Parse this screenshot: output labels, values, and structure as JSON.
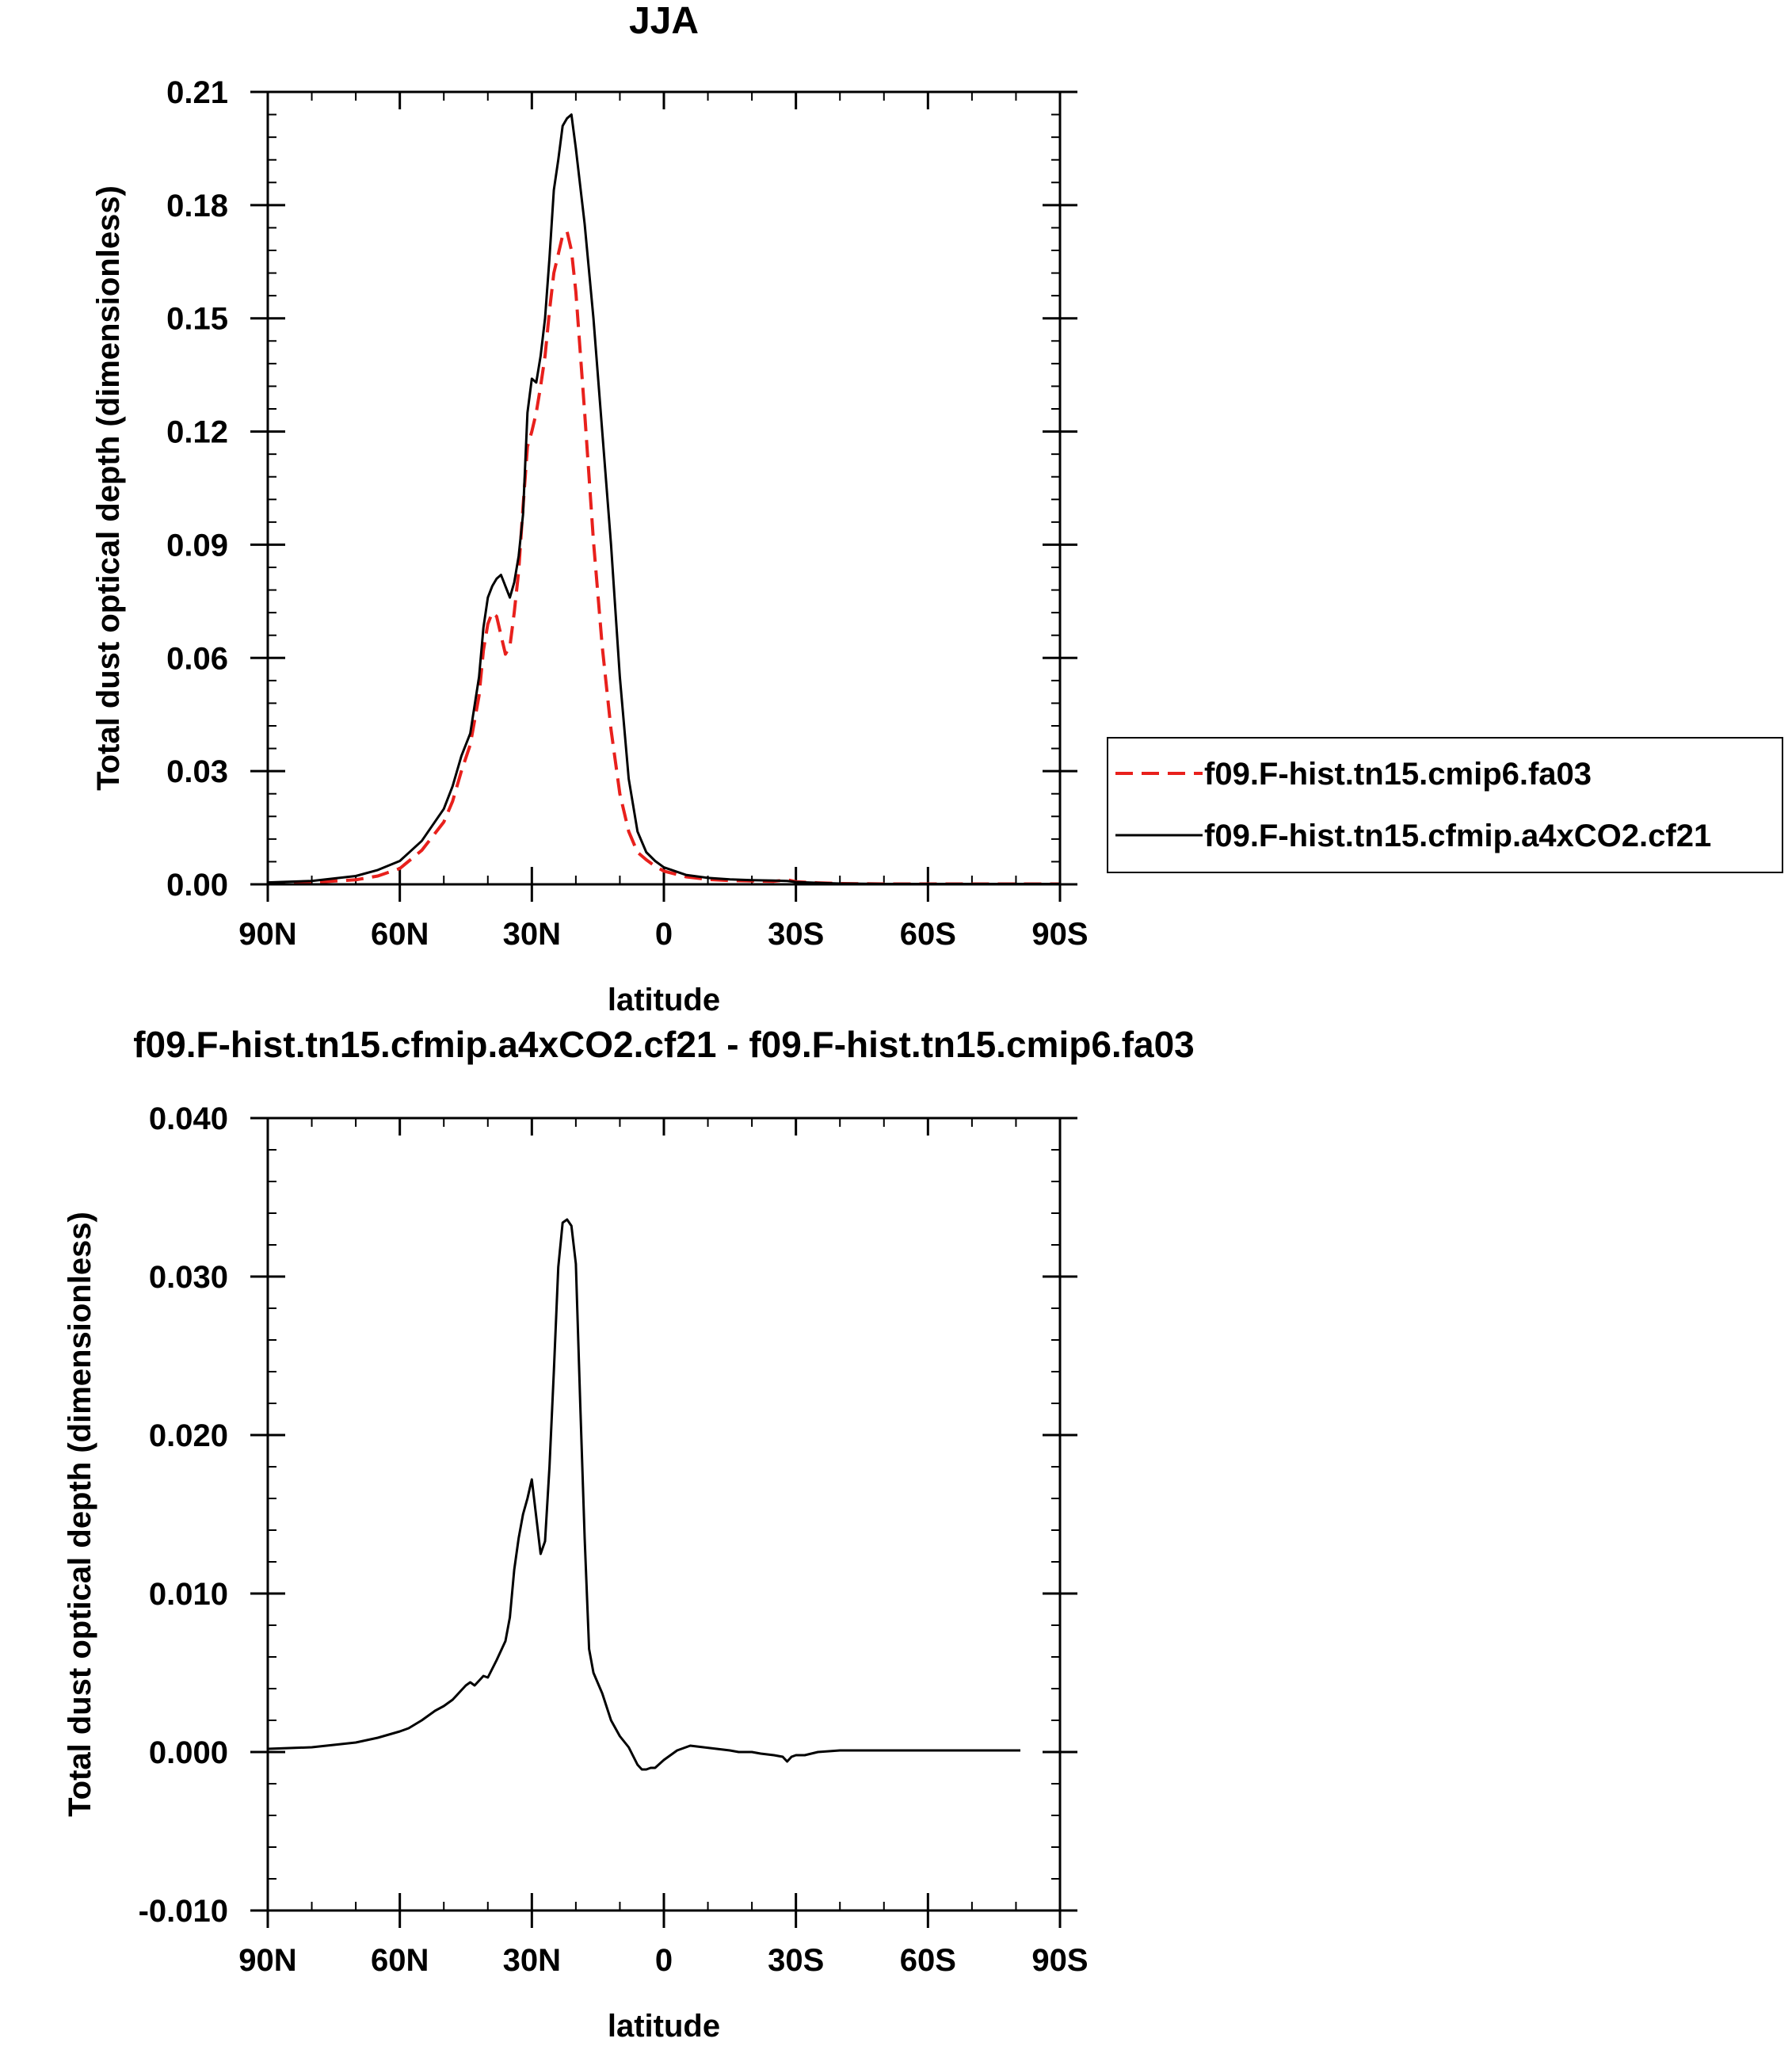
{
  "chart_data": [
    {
      "type": "line",
      "title": "JJA",
      "xlabel": "latitude",
      "ylabel": "Total dust optical depth (dimensionless)",
      "xlim": [
        90,
        -90
      ],
      "ylim": [
        0,
        0.21
      ],
      "x_ticks": [
        90,
        60,
        30,
        0,
        -30,
        -60,
        -90
      ],
      "x_tick_labels": [
        "90N",
        "60N",
        "30N",
        "0",
        "30S",
        "60S",
        "90S"
      ],
      "y_ticks": [
        0,
        0.03,
        0.06,
        0.09,
        0.12,
        0.15,
        0.18,
        0.21
      ],
      "y_tick_labels": [
        "0.00",
        "0.03",
        "0.06",
        "0.09",
        "0.12",
        "0.15",
        "0.18",
        "0.21"
      ],
      "legend_placement": "right",
      "series": [
        {
          "name": "f09.F-hist.tn15.cmip6.fa03",
          "color": "#e8201c",
          "dash": "dashed",
          "x": [
            90,
            80,
            70,
            65,
            60,
            55,
            50,
            48,
            46,
            44,
            42,
            41,
            40,
            39,
            38,
            37,
            36,
            35,
            34,
            33,
            32,
            31,
            30,
            29,
            28,
            27,
            26,
            25,
            24,
            23,
            22,
            21,
            20,
            18,
            16,
            14,
            12,
            10,
            8,
            6,
            4,
            2,
            0,
            -5,
            -10,
            -15,
            -20,
            -25,
            -28,
            -30,
            -35,
            -40,
            -50,
            -60,
            -70,
            -80,
            -90
          ],
          "y": [
            0.0003,
            0.0005,
            0.0012,
            0.0022,
            0.0042,
            0.009,
            0.0165,
            0.022,
            0.03,
            0.037,
            0.05,
            0.062,
            0.069,
            0.072,
            0.071,
            0.066,
            0.061,
            0.063,
            0.072,
            0.083,
            0.1,
            0.116,
            0.12,
            0.125,
            0.132,
            0.14,
            0.152,
            0.162,
            0.167,
            0.172,
            0.173,
            0.168,
            0.157,
            0.125,
            0.091,
            0.063,
            0.041,
            0.024,
            0.014,
            0.0085,
            0.0065,
            0.0048,
            0.0035,
            0.002,
            0.0013,
            0.001,
            0.0009,
            0.0008,
            0.0012,
            0.0007,
            0.0004,
            0.0002,
            0.0001,
            0.0001,
            0.0001,
            0.0001,
            0.0001
          ]
        },
        {
          "name": "f09.F-hist.tn15.cfmip.a4xCO2.cf21",
          "color": "#000000",
          "dash": "solid",
          "x": [
            90,
            80,
            70,
            65,
            60,
            55,
            50,
            48,
            46,
            44,
            42,
            41,
            40,
            39,
            38,
            37,
            36,
            35,
            34,
            33,
            32,
            31,
            30,
            29,
            28,
            27,
            26,
            25,
            24,
            23,
            22,
            21,
            20,
            18,
            16,
            14,
            12,
            10,
            8,
            6,
            4,
            2,
            0,
            -5,
            -10,
            -15,
            -20,
            -25,
            -28,
            -30,
            -35,
            -40,
            -50,
            -60,
            -70,
            -80,
            -90
          ],
          "y": [
            0.0005,
            0.0009,
            0.0022,
            0.0038,
            0.0062,
            0.0115,
            0.02,
            0.026,
            0.034,
            0.04,
            0.055,
            0.068,
            0.076,
            0.079,
            0.081,
            0.082,
            0.079,
            0.076,
            0.08,
            0.087,
            0.098,
            0.125,
            0.134,
            0.133,
            0.14,
            0.15,
            0.166,
            0.184,
            0.192,
            0.201,
            0.203,
            0.204,
            0.195,
            0.175,
            0.15,
            0.12,
            0.09,
            0.055,
            0.028,
            0.014,
            0.0085,
            0.0062,
            0.0045,
            0.0025,
            0.0017,
            0.0013,
            0.0011,
            0.001,
            0.0009,
            0.0006,
            0.0004,
            0.0002,
            0.0001,
            0.0001,
            0.0001,
            0.0001,
            0.0001
          ]
        }
      ]
    },
    {
      "type": "line",
      "title": "f09.F-hist.tn15.cfmip.a4xCO2.cf21 - f09.F-hist.tn15.cmip6.fa03",
      "xlabel": "latitude",
      "ylabel": "Total dust optical depth (dimensionless)",
      "xlim": [
        90,
        -90
      ],
      "ylim": [
        -0.01,
        0.04
      ],
      "x_ticks": [
        90,
        60,
        30,
        0,
        -30,
        -60,
        -90
      ],
      "x_tick_labels": [
        "90N",
        "60N",
        "30N",
        "0",
        "30S",
        "60S",
        "90S"
      ],
      "y_ticks": [
        -0.01,
        0,
        0.01,
        0.02,
        0.03,
        0.04
      ],
      "y_tick_labels": [
        "-0.010",
        "0.000",
        "0.010",
        "0.020",
        "0.030",
        "0.040"
      ],
      "series": [
        {
          "color": "#000000",
          "dash": "solid",
          "x": [
            90,
            80,
            70,
            65,
            60,
            58,
            55,
            52,
            50,
            48,
            47,
            46,
            45,
            44,
            43,
            42,
            41,
            40,
            38,
            36,
            35,
            34,
            33,
            32,
            31,
            30,
            28,
            27,
            26,
            25,
            24,
            23,
            22,
            21,
            20,
            19,
            18,
            17,
            16,
            14,
            12,
            10,
            8,
            6,
            5,
            4,
            3,
            2,
            0,
            -3,
            -6,
            -9,
            -12,
            -15,
            -17,
            -20,
            -22,
            -25,
            -27,
            -28,
            -29,
            -30,
            -32,
            -35,
            -40,
            -50,
            -60,
            -70,
            -80,
            -81
          ],
          "y": [
            0.0002,
            0.0003,
            0.0006,
            0.0009,
            0.0013,
            0.0015,
            0.002,
            0.0026,
            0.0029,
            0.0033,
            0.0036,
            0.0039,
            0.0042,
            0.0044,
            0.0042,
            0.0045,
            0.0048,
            0.0047,
            0.0058,
            0.007,
            0.0085,
            0.0115,
            0.0135,
            0.015,
            0.016,
            0.0172,
            0.0125,
            0.0133,
            0.018,
            0.024,
            0.0306,
            0.0334,
            0.0336,
            0.0332,
            0.0308,
            0.022,
            0.0135,
            0.0065,
            0.005,
            0.0037,
            0.002,
            0.001,
            0.0003,
            -0.0008,
            -0.0011,
            -0.0011,
            -0.001,
            -0.001,
            -0.0005,
            0.0001,
            0.0004,
            0.0003,
            0.0002,
            0.0001,
            0,
            0,
            -0.0001,
            -0.0002,
            -0.0003,
            -0.0006,
            -0.0003,
            -0.0002,
            -0.0002,
            0,
            0.0001,
            0.0001,
            0.0001,
            0.0001,
            0.0001,
            0.0001
          ]
        }
      ]
    }
  ]
}
